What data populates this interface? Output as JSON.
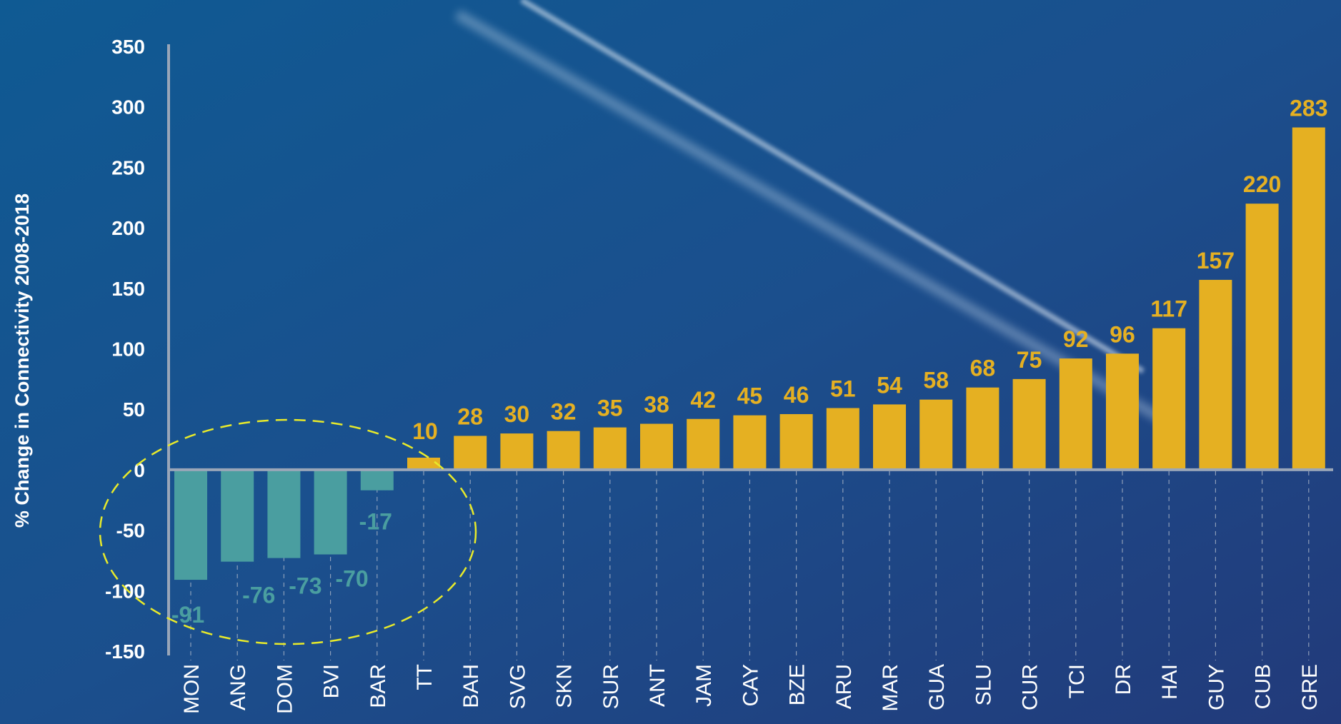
{
  "chart_data": {
    "type": "bar",
    "ylabel": "% Change in Connectivity 2008-2018",
    "ylim": [
      -150,
      350
    ],
    "yticks": [
      350,
      300,
      250,
      200,
      150,
      100,
      50,
      0,
      -50,
      -100,
      -150
    ],
    "categories": [
      "MON",
      "ANG",
      "DOM",
      "BVI",
      "BAR",
      "TT",
      "BAH",
      "SVG",
      "SKN",
      "SUR",
      "ANT",
      "JAM",
      "CAY",
      "BZE",
      "ARU",
      "MAR",
      "GUA",
      "SLU",
      "CUR",
      "TCI",
      "DR",
      "HAI",
      "GUY",
      "CUB",
      "GRE"
    ],
    "values": [
      -91,
      -76,
      -73,
      -70,
      -17,
      10,
      28,
      30,
      32,
      35,
      38,
      42,
      45,
      46,
      51,
      54,
      58,
      68,
      75,
      92,
      96,
      117,
      157,
      220,
      283
    ],
    "colors": {
      "positive": "#e5b022",
      "negative": "#4a9ea0",
      "axis": "#9aa6b8",
      "tick_label": "#ffffff",
      "highlight_ellipse": "#e8ea2a",
      "background": "#1d3f7c"
    },
    "grid": false,
    "annotation": "dashed-ellipse-around-negative-values"
  }
}
